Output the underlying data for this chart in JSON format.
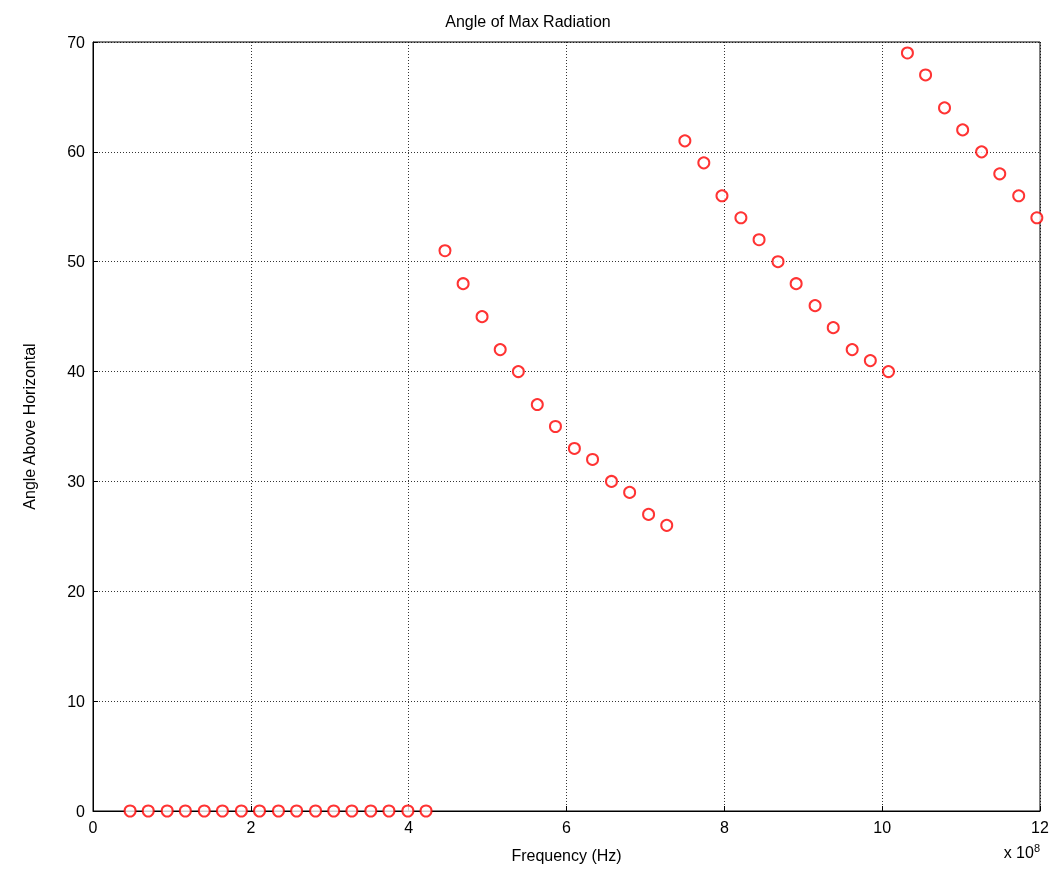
{
  "chart_data": {
    "type": "scatter",
    "title": "Angle of Max Radiation",
    "xlabel": "Frequency (Hz)",
    "ylabel": "Angle Above Horizontal",
    "annotations": [
      "x 10$^{8}$"
    ],
    "x": [
      0.47,
      0.7,
      0.94,
      1.17,
      1.41,
      1.64,
      1.88,
      2.11,
      2.35,
      2.58,
      2.82,
      3.05,
      3.28,
      3.52,
      3.75,
      3.99,
      4.22,
      4.46,
      4.69,
      4.93,
      5.16,
      5.39,
      5.63,
      5.86,
      6.1,
      6.33,
      6.57,
      6.8,
      7.04,
      7.27,
      7.5,
      7.74,
      7.97,
      8.21,
      8.44,
      8.68,
      8.91,
      9.15,
      9.38,
      9.62,
      9.85,
      10.08,
      10.32,
      10.55,
      10.79,
      11.02,
      11.26,
      11.49,
      11.73,
      11.96
    ],
    "series": [
      {
        "color": "#ff0000",
        "values": [
          0,
          0,
          0,
          0,
          0,
          0,
          0,
          0,
          0,
          0,
          0,
          0,
          0,
          0,
          0,
          0,
          0,
          51,
          48,
          45,
          42,
          40,
          37,
          35,
          33,
          32,
          30,
          29,
          27,
          26,
          61,
          59,
          56,
          54,
          52,
          50,
          48,
          46,
          44,
          42,
          41,
          40,
          69,
          67,
          64,
          62,
          60,
          58,
          56,
          54
        ]
      }
    ],
    "xlim": [
      0,
      12
    ],
    "xticks": [
      0,
      2,
      4,
      6,
      8,
      10,
      12
    ],
    "ylim": [
      0,
      70
    ],
    "yticks": [
      0,
      10,
      20,
      30,
      40,
      50,
      60,
      70
    ],
    "grid": true,
    "marker": "circle"
  }
}
